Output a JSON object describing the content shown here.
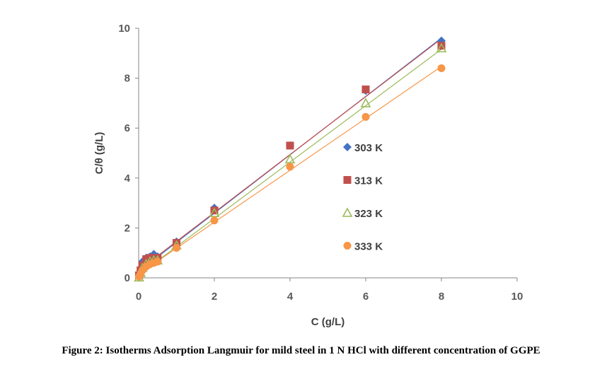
{
  "chart_data": {
    "type": "scatter",
    "xlabel": "C (g/L)",
    "ylabel": "C/θ (g/L)",
    "xlim": [
      0,
      10
    ],
    "ylim": [
      0,
      10
    ],
    "xticks": [
      0,
      2,
      4,
      6,
      8,
      10
    ],
    "yticks": [
      0,
      2,
      4,
      6,
      8,
      10
    ],
    "grid": false,
    "legend_position": "right-middle",
    "series": [
      {
        "name": "303 K",
        "marker": "diamond",
        "color": "#4472C4",
        "x": [
          0.01,
          0.05,
          0.1,
          0.2,
          0.3,
          0.4,
          0.5,
          1,
          2,
          4,
          6,
          8
        ],
        "y": [
          0.1,
          0.3,
          0.65,
          0.8,
          0.85,
          0.95,
          0.85,
          1.45,
          2.8,
          5.3,
          7.5,
          9.5
        ],
        "fit": [
          0.25,
          1.17
        ]
      },
      {
        "name": "313 K",
        "marker": "square",
        "color": "#C0504D",
        "x": [
          0.01,
          0.05,
          0.1,
          0.2,
          0.3,
          0.4,
          0.5,
          1,
          2,
          4,
          6,
          8
        ],
        "y": [
          0.1,
          0.3,
          0.5,
          0.75,
          0.8,
          0.8,
          0.8,
          1.4,
          2.7,
          5.3,
          7.55,
          9.3
        ],
        "fit": [
          0.3,
          1.16
        ]
      },
      {
        "name": "323 K",
        "marker": "triangle",
        "color": "#9BBB59",
        "x": [
          0.01,
          0.05,
          0.1,
          0.2,
          0.3,
          0.4,
          0.5,
          1,
          2,
          4,
          6,
          8
        ],
        "y": [
          0.02,
          0.2,
          0.4,
          0.55,
          0.65,
          0.7,
          0.7,
          1.3,
          2.6,
          4.75,
          7.0,
          9.2
        ],
        "fit": [
          0.12,
          1.13
        ]
      },
      {
        "name": "333 K",
        "marker": "circle",
        "color": "#F79646",
        "x": [
          0.01,
          0.05,
          0.1,
          0.2,
          0.3,
          0.4,
          0.5,
          1,
          2,
          4,
          6,
          8
        ],
        "y": [
          0.05,
          0.15,
          0.3,
          0.45,
          0.55,
          0.6,
          0.65,
          1.2,
          2.3,
          4.45,
          6.45,
          8.4
        ],
        "fit": [
          0.15,
          1.04
        ]
      }
    ]
  },
  "caption": "Figure 2: Isotherms Adsorption Langmuir for mild steel in 1 N HCl with different concentration of GGPE"
}
